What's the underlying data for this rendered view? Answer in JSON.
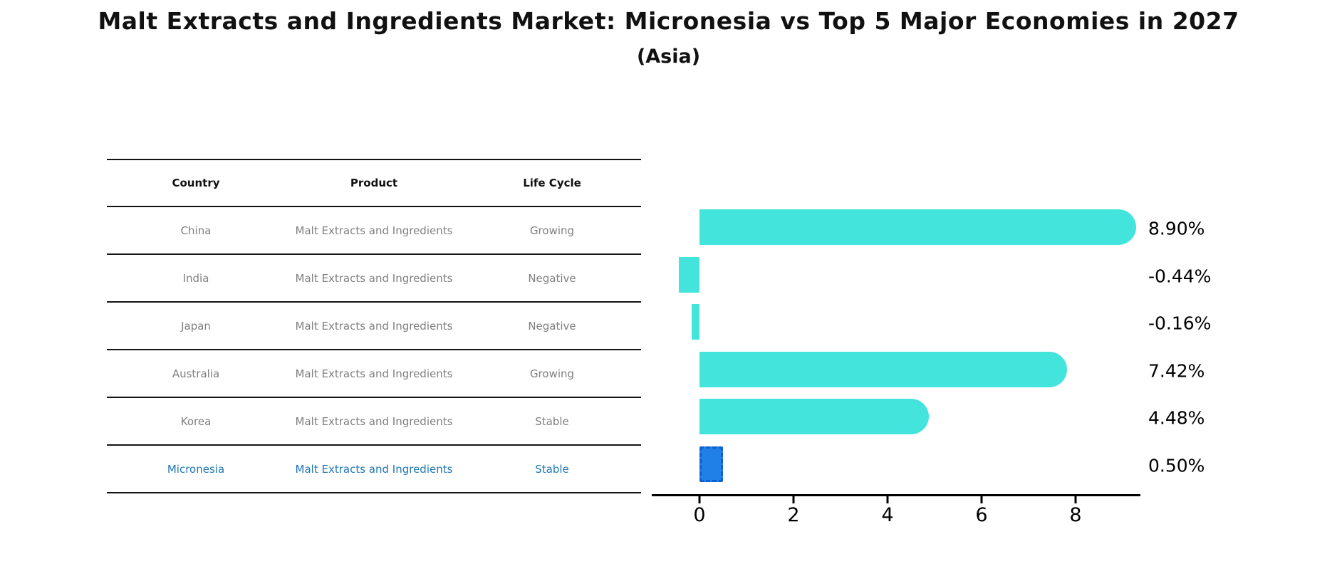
{
  "title": "Malt Extracts and Ingredients Market: Micronesia vs Top 5 Major Economies in 2027",
  "subtitle": "(Asia)",
  "table": {
    "headers": [
      "Country",
      "Product",
      "Life Cycle"
    ],
    "rows": [
      {
        "country": "China",
        "product": "Malt Extracts and Ingredients",
        "life_cycle": "Growing",
        "highlight": false
      },
      {
        "country": "India",
        "product": "Malt Extracts and Ingredients",
        "life_cycle": "Negative",
        "highlight": false
      },
      {
        "country": "Japan",
        "product": "Malt Extracts and Ingredients",
        "life_cycle": "Negative",
        "highlight": false
      },
      {
        "country": "Australia",
        "product": "Malt Extracts and Ingredients",
        "life_cycle": "Growing",
        "highlight": false
      },
      {
        "country": "Korea",
        "product": "Malt Extracts and Ingredients",
        "life_cycle": "Stable",
        "highlight": false
      },
      {
        "country": "Micronesia",
        "product": "Malt Extracts and Ingredients",
        "life_cycle": "Stable",
        "highlight": true
      }
    ]
  },
  "chart_data": {
    "type": "bar",
    "orientation": "horizontal",
    "title": "Malt Extracts and Ingredients Market: Micronesia vs Top 5 Major Economies in 2027 (Asia)",
    "categories": [
      "China",
      "India",
      "Japan",
      "Australia",
      "Korea",
      "Micronesia"
    ],
    "values": [
      8.9,
      -0.44,
      -0.16,
      7.42,
      4.48,
      0.5
    ],
    "value_labels": [
      "8.90%",
      "-0.44%",
      "-0.16%",
      "7.42%",
      "4.48%",
      "0.50%"
    ],
    "xticks": [
      "0",
      "2",
      "4",
      "6",
      "8"
    ],
    "xtick_values": [
      0,
      2,
      4,
      6,
      8
    ],
    "xlim": [
      -1.0,
      9.4
    ],
    "grid": false,
    "legend": "none",
    "highlight_index": 5
  },
  "colors": {
    "bar": "#43e4dc",
    "highlight_bar": "#2080e8",
    "highlight_edge": "#0e5fd0",
    "highlight_text": "#1f77b4",
    "table_text": "#7f7f7f",
    "axis": "#000000"
  }
}
